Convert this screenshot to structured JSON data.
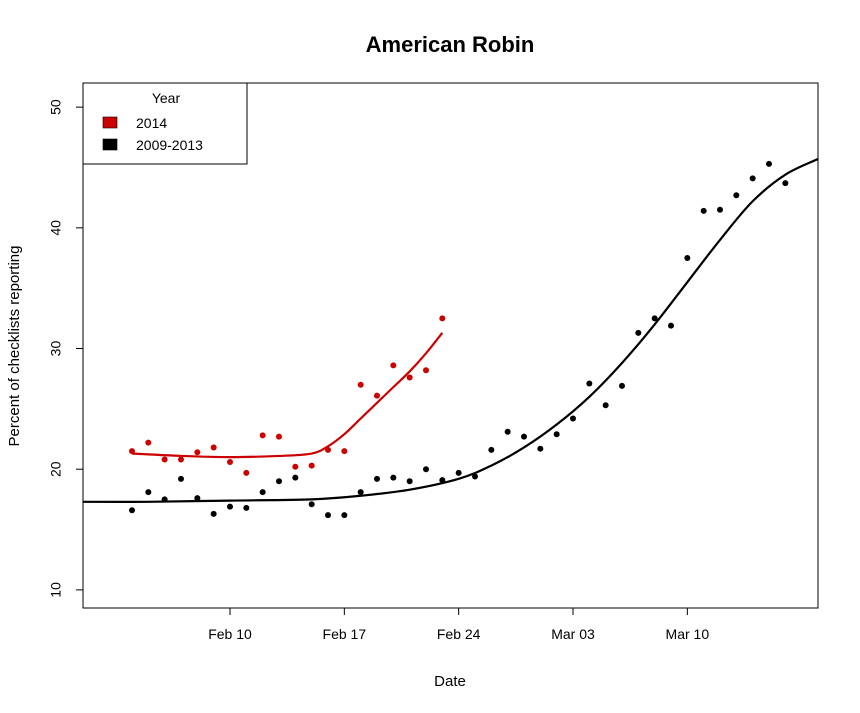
{
  "chart_data": {
    "type": "scatter",
    "title": "American Robin",
    "xlabel": "Date",
    "ylabel": "Percent of checklists reporting",
    "x_unit": "date",
    "x_range": [
      "2014-02-01",
      "2014-03-18"
    ],
    "ylim": [
      8.5,
      52
    ],
    "x_ticks": [
      {
        "date": "2014-02-10",
        "label": "Feb 10"
      },
      {
        "date": "2014-02-17",
        "label": "Feb 17"
      },
      {
        "date": "2014-02-24",
        "label": "Feb 24"
      },
      {
        "date": "2014-03-03",
        "label": "Mar 03"
      },
      {
        "date": "2014-03-10",
        "label": "Mar 10"
      }
    ],
    "y_ticks": [
      10,
      20,
      30,
      40,
      50
    ],
    "grid": false,
    "legend": {
      "title": "Year",
      "position": "top-left",
      "entries": [
        {
          "label": "2014",
          "color": "#cc0000"
        },
        {
          "label": "2009-2013",
          "color": "#000000"
        }
      ]
    },
    "series": [
      {
        "name": "2014",
        "color": "#cc0000",
        "points": [
          [
            "2014-02-04",
            21.5
          ],
          [
            "2014-02-05",
            22.2
          ],
          [
            "2014-02-06",
            20.8
          ],
          [
            "2014-02-07",
            20.8
          ],
          [
            "2014-02-08",
            21.4
          ],
          [
            "2014-02-09",
            21.8
          ],
          [
            "2014-02-10",
            20.6
          ],
          [
            "2014-02-11",
            19.7
          ],
          [
            "2014-02-12",
            22.8
          ],
          [
            "2014-02-13",
            22.7
          ],
          [
            "2014-02-14",
            20.2
          ],
          [
            "2014-02-15",
            20.3
          ],
          [
            "2014-02-16",
            21.6
          ],
          [
            "2014-02-17",
            21.5
          ],
          [
            "2014-02-18",
            27.0
          ],
          [
            "2014-02-19",
            26.1
          ],
          [
            "2014-02-20",
            28.6
          ],
          [
            "2014-02-21",
            27.6
          ],
          [
            "2014-02-22",
            28.2
          ],
          [
            "2014-02-23",
            32.5
          ]
        ],
        "trend": [
          [
            "2014-02-04",
            21.3
          ],
          [
            "2014-02-07",
            21.1
          ],
          [
            "2014-02-10",
            21.0
          ],
          [
            "2014-02-13",
            21.1
          ],
          [
            "2014-02-15",
            21.3
          ],
          [
            "2014-02-16",
            21.9
          ],
          [
            "2014-02-17",
            22.9
          ],
          [
            "2014-02-18",
            24.2
          ],
          [
            "2014-02-19",
            25.5
          ],
          [
            "2014-02-20",
            26.8
          ],
          [
            "2014-02-21",
            28.1
          ],
          [
            "2014-02-22",
            29.6
          ],
          [
            "2014-02-23",
            31.3
          ]
        ]
      },
      {
        "name": "2009-2013",
        "color": "#000000",
        "points": [
          [
            "2014-02-04",
            16.6
          ],
          [
            "2014-02-05",
            18.1
          ],
          [
            "2014-02-06",
            17.5
          ],
          [
            "2014-02-07",
            19.2
          ],
          [
            "2014-02-08",
            17.6
          ],
          [
            "2014-02-09",
            16.3
          ],
          [
            "2014-02-10",
            16.9
          ],
          [
            "2014-02-11",
            16.8
          ],
          [
            "2014-02-12",
            18.1
          ],
          [
            "2014-02-13",
            19.0
          ],
          [
            "2014-02-14",
            19.3
          ],
          [
            "2014-02-15",
            17.1
          ],
          [
            "2014-02-16",
            16.2
          ],
          [
            "2014-02-17",
            16.2
          ],
          [
            "2014-02-18",
            18.1
          ],
          [
            "2014-02-19",
            19.2
          ],
          [
            "2014-02-20",
            19.3
          ],
          [
            "2014-02-21",
            19.0
          ],
          [
            "2014-02-22",
            20.0
          ],
          [
            "2014-02-23",
            19.1
          ],
          [
            "2014-02-24",
            19.7
          ],
          [
            "2014-02-25",
            19.4
          ],
          [
            "2014-02-26",
            21.6
          ],
          [
            "2014-02-27",
            23.1
          ],
          [
            "2014-02-28",
            22.7
          ],
          [
            "2014-03-01",
            21.7
          ],
          [
            "2014-03-02",
            22.9
          ],
          [
            "2014-03-03",
            24.2
          ],
          [
            "2014-03-04",
            27.1
          ],
          [
            "2014-03-05",
            25.3
          ],
          [
            "2014-03-06",
            26.9
          ],
          [
            "2014-03-07",
            31.3
          ],
          [
            "2014-03-08",
            32.5
          ],
          [
            "2014-03-09",
            31.9
          ],
          [
            "2014-03-10",
            37.5
          ],
          [
            "2014-03-11",
            41.4
          ],
          [
            "2014-03-12",
            41.5
          ],
          [
            "2014-03-13",
            42.7
          ],
          [
            "2014-03-14",
            44.1
          ],
          [
            "2014-03-15",
            45.3
          ],
          [
            "2014-03-16",
            43.7
          ]
        ],
        "trend": [
          [
            "2014-02-01",
            17.3
          ],
          [
            "2014-02-05",
            17.3
          ],
          [
            "2014-02-10",
            17.4
          ],
          [
            "2014-02-15",
            17.5
          ],
          [
            "2014-02-18",
            17.8
          ],
          [
            "2014-02-21",
            18.3
          ],
          [
            "2014-02-24",
            19.2
          ],
          [
            "2014-02-26",
            20.3
          ],
          [
            "2014-02-28",
            21.8
          ],
          [
            "2014-03-02",
            23.7
          ],
          [
            "2014-03-04",
            26.0
          ],
          [
            "2014-03-06",
            28.8
          ],
          [
            "2014-03-08",
            32.0
          ],
          [
            "2014-03-10",
            35.5
          ],
          [
            "2014-03-12",
            39.0
          ],
          [
            "2014-03-14",
            42.2
          ],
          [
            "2014-03-16",
            44.4
          ],
          [
            "2014-03-18",
            45.7
          ]
        ]
      }
    ]
  }
}
